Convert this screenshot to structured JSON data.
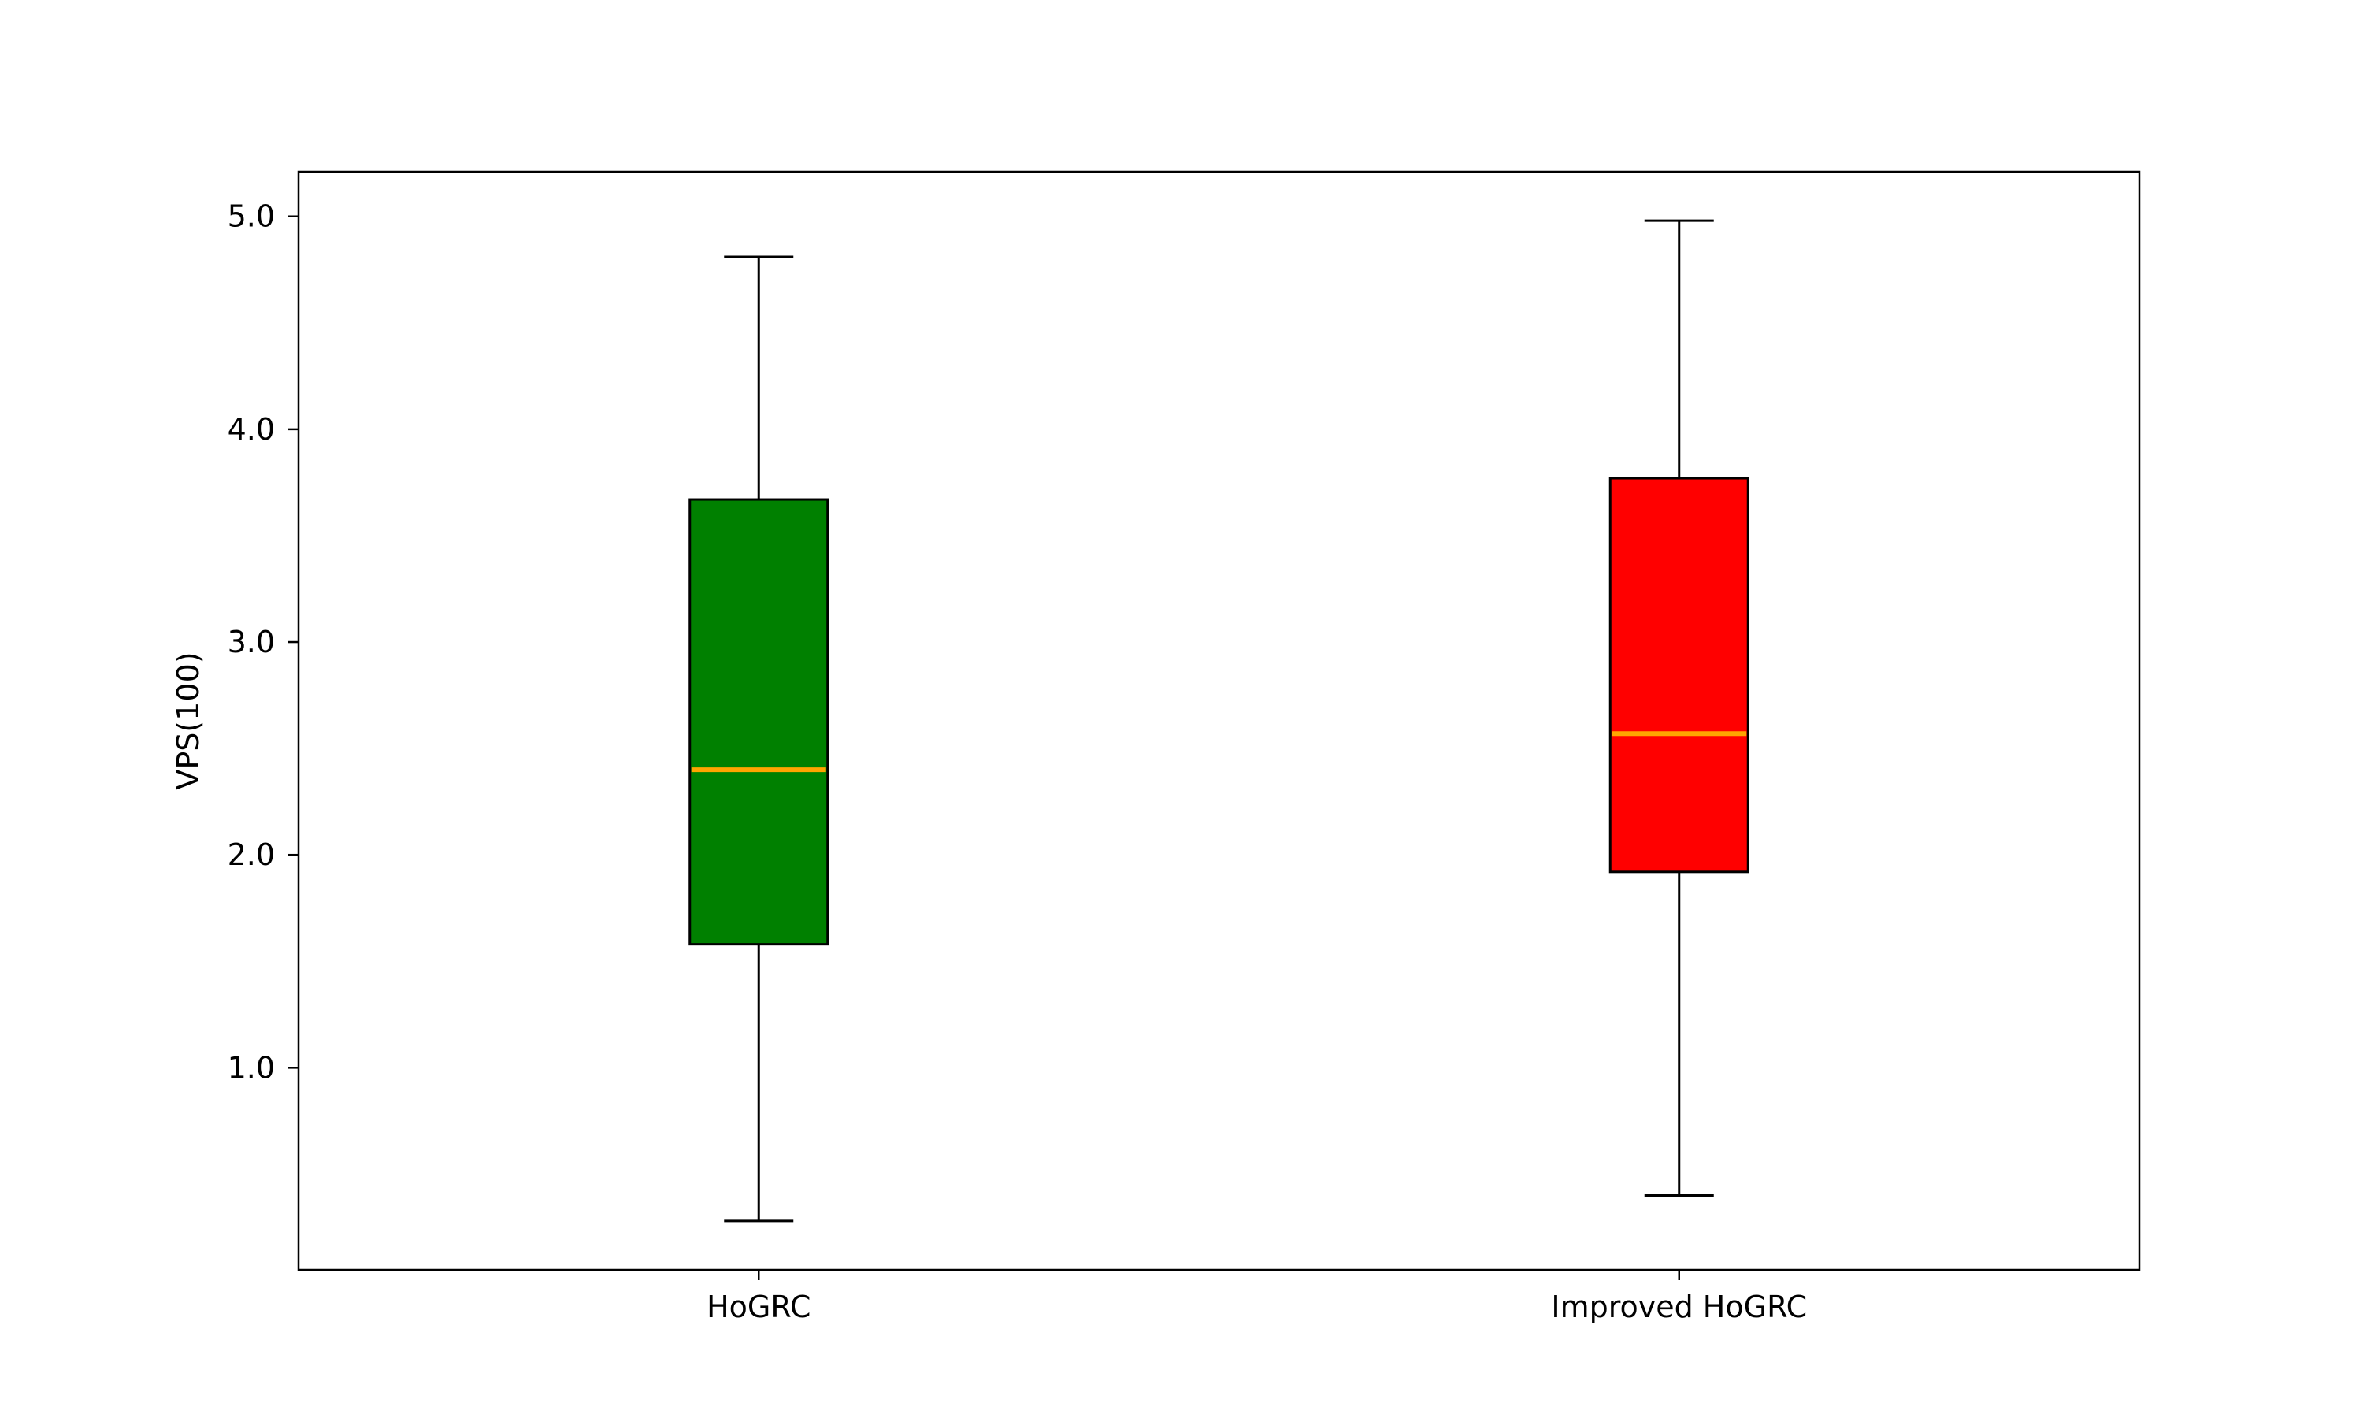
{
  "chart_data": {
    "type": "box",
    "title": "",
    "xlabel": "",
    "ylabel": "VPS(100)",
    "ylim": [
      0.05,
      5.21
    ],
    "yticks": [
      1.0,
      2.0,
      3.0,
      4.0,
      5.0
    ],
    "ytick_labels": [
      "1.0",
      "2.0",
      "3.0",
      "4.0",
      "5.0"
    ],
    "grid": false,
    "legend": "none",
    "categories": [
      "HoGRC",
      "Improved HoGRC"
    ],
    "boxes": [
      {
        "category": "HoGRC",
        "whisker_low": 0.28,
        "q1": 1.58,
        "median": 2.4,
        "q3": 3.67,
        "whisker_high": 4.81,
        "fill_color": "#008000"
      },
      {
        "category": "Improved HoGRC",
        "whisker_low": 0.4,
        "q1": 1.92,
        "median": 2.57,
        "q3": 3.77,
        "whisker_high": 4.98,
        "fill_color": "#ff0000"
      }
    ],
    "median_color": "#ffa500",
    "edge_color": "#000000"
  }
}
